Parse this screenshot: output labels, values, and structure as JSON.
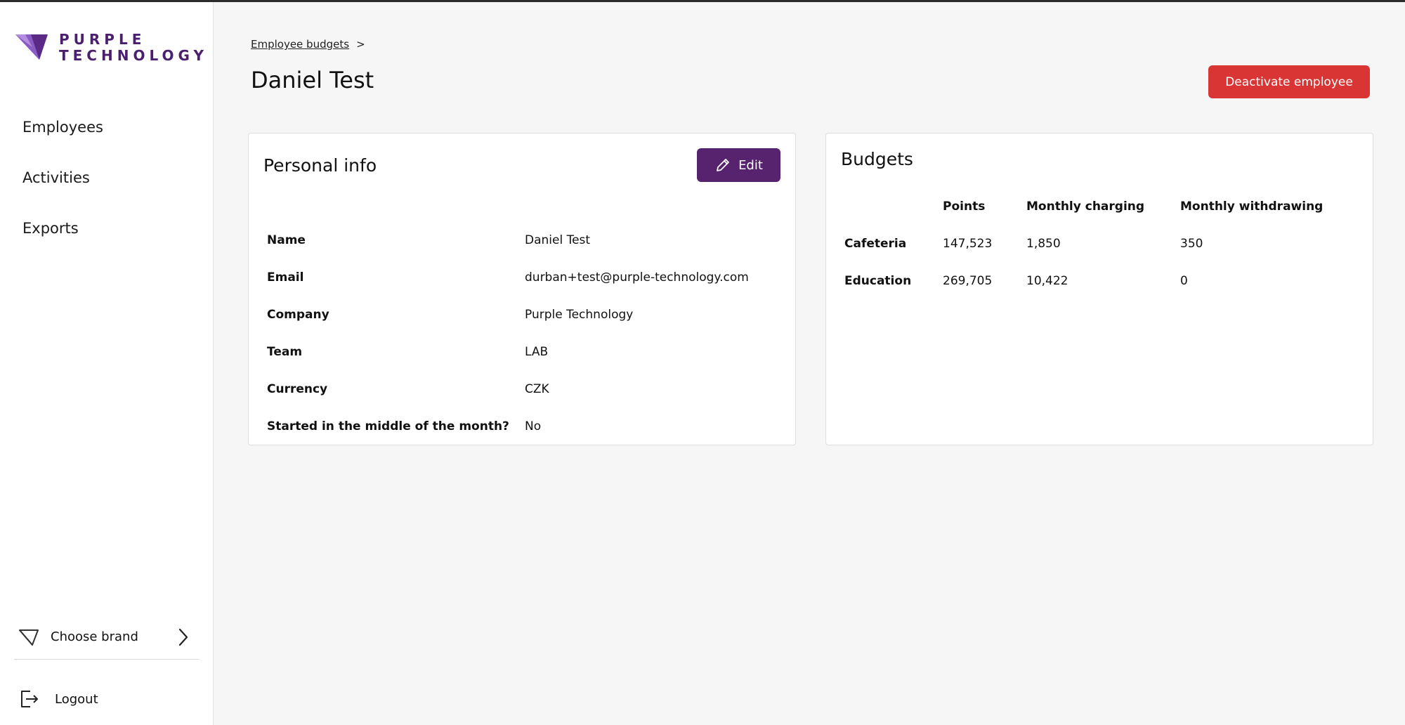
{
  "brand": {
    "line1": "PURPLE",
    "line2": "TECHNOLOGY",
    "color": "#4b1f6f"
  },
  "sidebar": {
    "items": [
      {
        "label": "Employees"
      },
      {
        "label": "Activities"
      },
      {
        "label": "Exports"
      }
    ],
    "choose_brand": "Choose brand",
    "logout": "Logout"
  },
  "breadcrumb": {
    "parent": "Employee budgets",
    "separator": ">"
  },
  "page": {
    "title": "Daniel Test",
    "deactivate_label": "Deactivate employee"
  },
  "personal_info": {
    "title": "Personal info",
    "edit_label": "Edit",
    "rows": [
      {
        "key": "Name",
        "value": "Daniel Test"
      },
      {
        "key": "Email",
        "value": "durban+test@purple-technology.com"
      },
      {
        "key": "Company",
        "value": "Purple Technology"
      },
      {
        "key": "Team",
        "value": "LAB"
      },
      {
        "key": "Currency",
        "value": "CZK"
      },
      {
        "key": "Started in the middle of the month?",
        "value": "No"
      }
    ]
  },
  "budgets": {
    "title": "Budgets",
    "headers": [
      "",
      "Points",
      "Monthly charging",
      "Monthly withdrawing"
    ],
    "rows": [
      {
        "category": "Cafeteria",
        "points": "147,523",
        "charging": "1,850",
        "withdrawing": "350"
      },
      {
        "category": "Education",
        "points": "269,705",
        "charging": "10,422",
        "withdrawing": "0"
      }
    ]
  },
  "colors": {
    "accent": "#57226e",
    "danger": "#d93535",
    "background": "#f6f6f6"
  }
}
